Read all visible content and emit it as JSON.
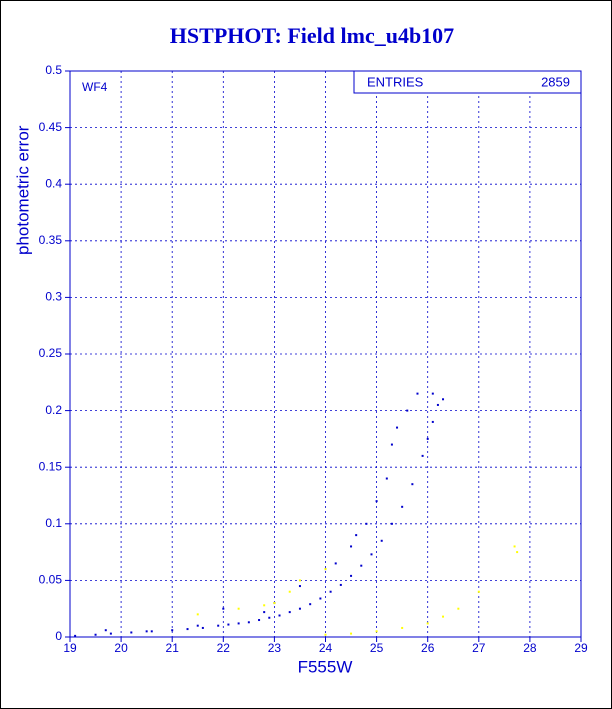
{
  "chart_data": {
    "type": "scatter",
    "title": "HSTPHOT: Field lmc_u4b107",
    "xlabel": "F555W",
    "ylabel": "photometric error",
    "annotation": "WF4",
    "stats": {
      "label": "ENTRIES",
      "value": "2859"
    },
    "xlim": [
      19,
      29
    ],
    "xticks": [
      19,
      20,
      21,
      22,
      23,
      24,
      25,
      26,
      27,
      28,
      29
    ],
    "ylim": [
      0,
      0.5
    ],
    "yticks": [
      0,
      0.05,
      0.1,
      0.15,
      0.2,
      0.25,
      0.3,
      0.35,
      0.4,
      0.45,
      0.5
    ],
    "grid": true,
    "series": [
      {
        "color": "#0000cc",
        "x": [
          19.1,
          19.5,
          19.8,
          20.2,
          20.6,
          21.0,
          21.3,
          21.6,
          21.9,
          22.1,
          22.3,
          22.5,
          22.7,
          22.9,
          23.1,
          23.3,
          23.5,
          23.7,
          23.9,
          24.1,
          24.3,
          24.5,
          24.7,
          24.9,
          25.1,
          25.3,
          25.5,
          25.7,
          25.9,
          26.0,
          26.1,
          26.2,
          26.3,
          23.5,
          24.0,
          24.8,
          25.0,
          25.3,
          25.6,
          25.8,
          26.1,
          23.0,
          22.0,
          24.5,
          25.2,
          24.2,
          22.8,
          21.5,
          19.7,
          20.5,
          24.6,
          25.4
        ],
        "y": [
          0.001,
          0.002,
          0.003,
          0.004,
          0.005,
          0.006,
          0.007,
          0.008,
          0.01,
          0.011,
          0.012,
          0.013,
          0.015,
          0.017,
          0.019,
          0.022,
          0.025,
          0.029,
          0.034,
          0.04,
          0.046,
          0.054,
          0.063,
          0.073,
          0.085,
          0.1,
          0.115,
          0.135,
          0.16,
          0.175,
          0.19,
          0.205,
          0.21,
          0.045,
          0.06,
          0.1,
          0.12,
          0.17,
          0.2,
          0.215,
          0.215,
          0.03,
          0.025,
          0.08,
          0.14,
          0.065,
          0.022,
          0.01,
          0.006,
          0.005,
          0.09,
          0.185
        ]
      },
      {
        "color": "#ffff00",
        "x": [
          24.0,
          24.5,
          25.0,
          25.5,
          26.0,
          26.3,
          26.6,
          27.0,
          27.7,
          27.75,
          21.5,
          22.3,
          23.0,
          23.5,
          24.0,
          23.3,
          22.8
        ],
        "y": [
          0.002,
          0.003,
          0.005,
          0.008,
          0.012,
          0.018,
          0.025,
          0.04,
          0.08,
          0.075,
          0.02,
          0.025,
          0.03,
          0.05,
          0.06,
          0.04,
          0.028
        ]
      }
    ]
  }
}
